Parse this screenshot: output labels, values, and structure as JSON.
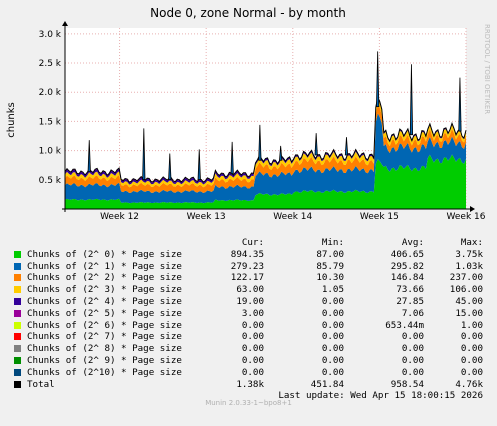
{
  "chart_data": {
    "type": "area",
    "stacked": true,
    "title": "Node 0, zone Normal - by month",
    "ylabel": "chunks",
    "ylim": [
      0,
      3100
    ],
    "yticks": [
      {
        "value": 500,
        "label": "0.5 k"
      },
      {
        "value": 1000,
        "label": "1.0 k"
      },
      {
        "value": 1500,
        "label": "1.5 k"
      },
      {
        "value": 2000,
        "label": "2.0 k"
      },
      {
        "value": 2500,
        "label": "2.5 k"
      },
      {
        "value": 3000,
        "label": "3.0 k"
      }
    ],
    "xticks": [
      {
        "value": 12,
        "label": "Week 12"
      },
      {
        "value": 13,
        "label": "Week 13"
      },
      {
        "value": 14,
        "label": "Week 14"
      },
      {
        "value": 15,
        "label": "Week 15"
      },
      {
        "value": 16,
        "label": "Week 16"
      }
    ],
    "xlim": [
      11.37,
      16.0
    ],
    "grid": true,
    "watermark": "RRDTOOL / TOBI OETIKER",
    "columns": [
      "Cur:",
      "Min:",
      "Avg:",
      "Max:"
    ],
    "series": [
      {
        "name": "Chunks of (2^ 0) * Page size",
        "color": "#00cc00",
        "cur": "894.35",
        "min": "87.00",
        "avg": "406.65",
        "max": "3.75k"
      },
      {
        "name": "Chunks of (2^ 1) * Page size",
        "color": "#0066b3",
        "cur": "279.23",
        "min": "85.79",
        "avg": "295.82",
        "max": "1.03k"
      },
      {
        "name": "Chunks of (2^ 2) * Page size",
        "color": "#ff8000",
        "cur": "122.17",
        "min": "10.30",
        "avg": "146.84",
        "max": "237.00"
      },
      {
        "name": "Chunks of (2^ 3) * Page size",
        "color": "#ffcc00",
        "cur": "63.00",
        "min": "1.05",
        "avg": "73.66",
        "max": "106.00"
      },
      {
        "name": "Chunks of (2^ 4) * Page size",
        "color": "#330099",
        "cur": "19.00",
        "min": "0.00",
        "avg": "27.85",
        "max": "45.00"
      },
      {
        "name": "Chunks of (2^ 5) * Page size",
        "color": "#990099",
        "cur": "3.00",
        "min": "0.00",
        "avg": "7.06",
        "max": "15.00"
      },
      {
        "name": "Chunks of (2^ 6) * Page size",
        "color": "#ccff00",
        "cur": "0.00",
        "min": "0.00",
        "avg": "653.44m",
        "max": "1.00"
      },
      {
        "name": "Chunks of (2^ 7) * Page size",
        "color": "#ff0000",
        "cur": "0.00",
        "min": "0.00",
        "avg": "0.00",
        "max": "0.00"
      },
      {
        "name": "Chunks of (2^ 8) * Page size",
        "color": "#808080",
        "cur": "0.00",
        "min": "0.00",
        "avg": "0.00",
        "max": "0.00"
      },
      {
        "name": "Chunks of (2^ 9) * Page size",
        "color": "#008f00",
        "cur": "0.00",
        "min": "0.00",
        "avg": "0.00",
        "max": "0.00"
      },
      {
        "name": "Chunks of (2^10) * Page size",
        "color": "#00487d",
        "cur": "0.00",
        "min": "0.00",
        "avg": "0.00",
        "max": "0.00"
      }
    ],
    "total": {
      "name": "Total",
      "color": "#000000",
      "cur": "1.38k",
      "min": "451.84",
      "avg": "958.54",
      "max": "4.76k"
    },
    "segments": [
      {
        "x0": 11.37,
        "x1": 12.0,
        "layers": [
          160,
          250,
          120,
          60,
          40,
          10
        ]
      },
      {
        "x0": 12.0,
        "x1": 13.1,
        "layers": [
          110,
          190,
          110,
          50,
          35,
          10
        ]
      },
      {
        "x0": 13.1,
        "x1": 13.55,
        "layers": [
          150,
          230,
          120,
          60,
          35,
          10
        ]
      },
      {
        "x0": 13.55,
        "x1": 14.0,
        "layers": [
          250,
          340,
          140,
          70,
          30,
          5
        ]
      },
      {
        "x0": 14.0,
        "x1": 14.95,
        "layers": [
          300,
          370,
          150,
          75,
          25,
          5
        ]
      },
      {
        "x0": 14.95,
        "x1": 15.05,
        "layers": [
          780,
          720,
          150,
          80,
          20,
          3
        ]
      },
      {
        "x0": 15.05,
        "x1": 15.55,
        "layers": [
          700,
          350,
          130,
          70,
          20,
          3
        ]
      },
      {
        "x0": 15.55,
        "x1": 16.0,
        "layers": [
          850,
          280,
          120,
          63,
          19,
          3
        ]
      }
    ],
    "spikes": [
      {
        "x": 11.65,
        "total": 1180
      },
      {
        "x": 12.28,
        "total": 1380
      },
      {
        "x": 12.58,
        "total": 950
      },
      {
        "x": 12.92,
        "total": 1020
      },
      {
        "x": 13.3,
        "total": 1150
      },
      {
        "x": 13.62,
        "total": 1440
      },
      {
        "x": 13.86,
        "total": 1080
      },
      {
        "x": 14.27,
        "total": 1300
      },
      {
        "x": 14.62,
        "total": 1230
      },
      {
        "x": 14.98,
        "total": 2700
      },
      {
        "x": 15.37,
        "total": 2480
      },
      {
        "x": 15.93,
        "total": 2250
      }
    ]
  },
  "footer": {
    "last_update": "Last update: Wed Apr 15 18:00:15 2026",
    "version": "Munin 2.0.33-1~bpo8+1"
  }
}
